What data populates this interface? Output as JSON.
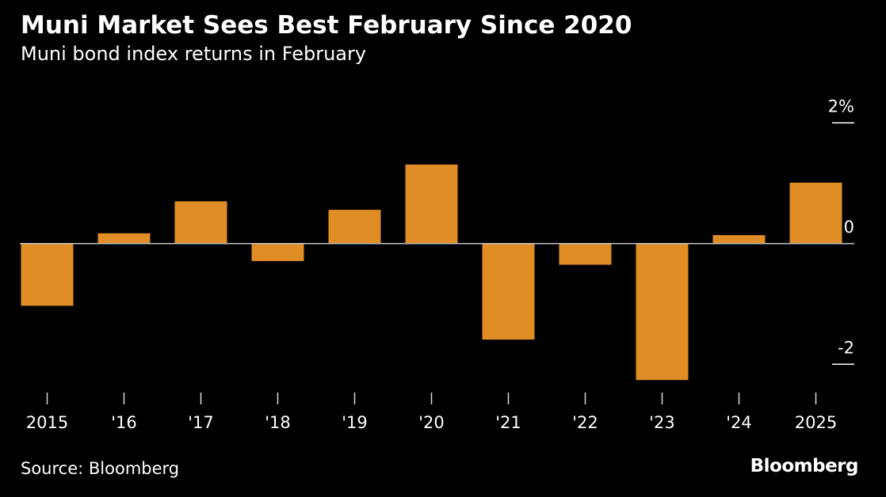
{
  "chart_data": {
    "type": "bar",
    "title": "Muni Market Sees Best February Since 2020",
    "subtitle": "Muni bond index returns in February",
    "categories": [
      "2015",
      "'16",
      "'17",
      "'18",
      "'19",
      "'20",
      "'21",
      "'22",
      "'23",
      "'24",
      "2025"
    ],
    "series": [
      {
        "name": "Muni bond index return (%)",
        "values": [
          -1.03,
          0.17,
          0.7,
          -0.29,
          0.56,
          1.31,
          -1.59,
          -0.35,
          -2.26,
          0.14,
          1.01
        ]
      }
    ],
    "xlabel": "",
    "ylabel": "",
    "ylim": [
      -2.35,
      2.2
    ],
    "yticks": [
      {
        "value": 2,
        "label": "2%"
      },
      {
        "value": 0,
        "label": "0"
      },
      {
        "value": -2,
        "label": "-2"
      }
    ],
    "y_axis_side": "right",
    "grid": false,
    "legend": "none",
    "bar_color": "#e08d25",
    "zero_line_color": "#bfbfbf"
  },
  "source": "Source: Bloomberg",
  "brand": "Bloomberg"
}
